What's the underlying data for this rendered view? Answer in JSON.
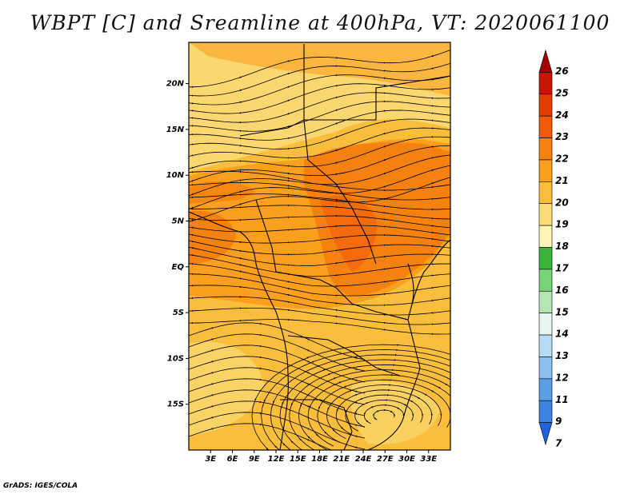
{
  "title": "WBPT [C] and Sreamline at 400hPa, VT: 2020061100",
  "credit": "GrADS: IGES/COLA",
  "lat_labels": [
    "20N",
    "15N",
    "10N",
    "5N",
    "EQ",
    "5S",
    "10S",
    "15S"
  ],
  "lon_labels": [
    "3E",
    "6E",
    "9E",
    "12E",
    "15E",
    "18E",
    "21E",
    "24E",
    "27E",
    "30E",
    "33E"
  ],
  "colorbar": {
    "labels": [
      "26",
      "25",
      "24",
      "23",
      "22",
      "21",
      "20",
      "19",
      "18",
      "17",
      "16",
      "15",
      "14",
      "13",
      "12",
      "11",
      "9",
      "7"
    ],
    "colors": [
      "#a50000",
      "#c81400",
      "#e63c00",
      "#f05a0a",
      "#f5820f",
      "#faa01e",
      "#fabe3c",
      "#fadc78",
      "#fff5b4",
      "#3cb43c",
      "#78d278",
      "#b4e6b4",
      "#e6f5f0",
      "#b4dcf5",
      "#8cbeef",
      "#5a9ee6",
      "#3c82e1",
      "#1e64dc"
    ]
  },
  "map": {
    "lon_range": [
      0,
      36
    ],
    "lat_range": [
      -20,
      24.5
    ]
  }
}
